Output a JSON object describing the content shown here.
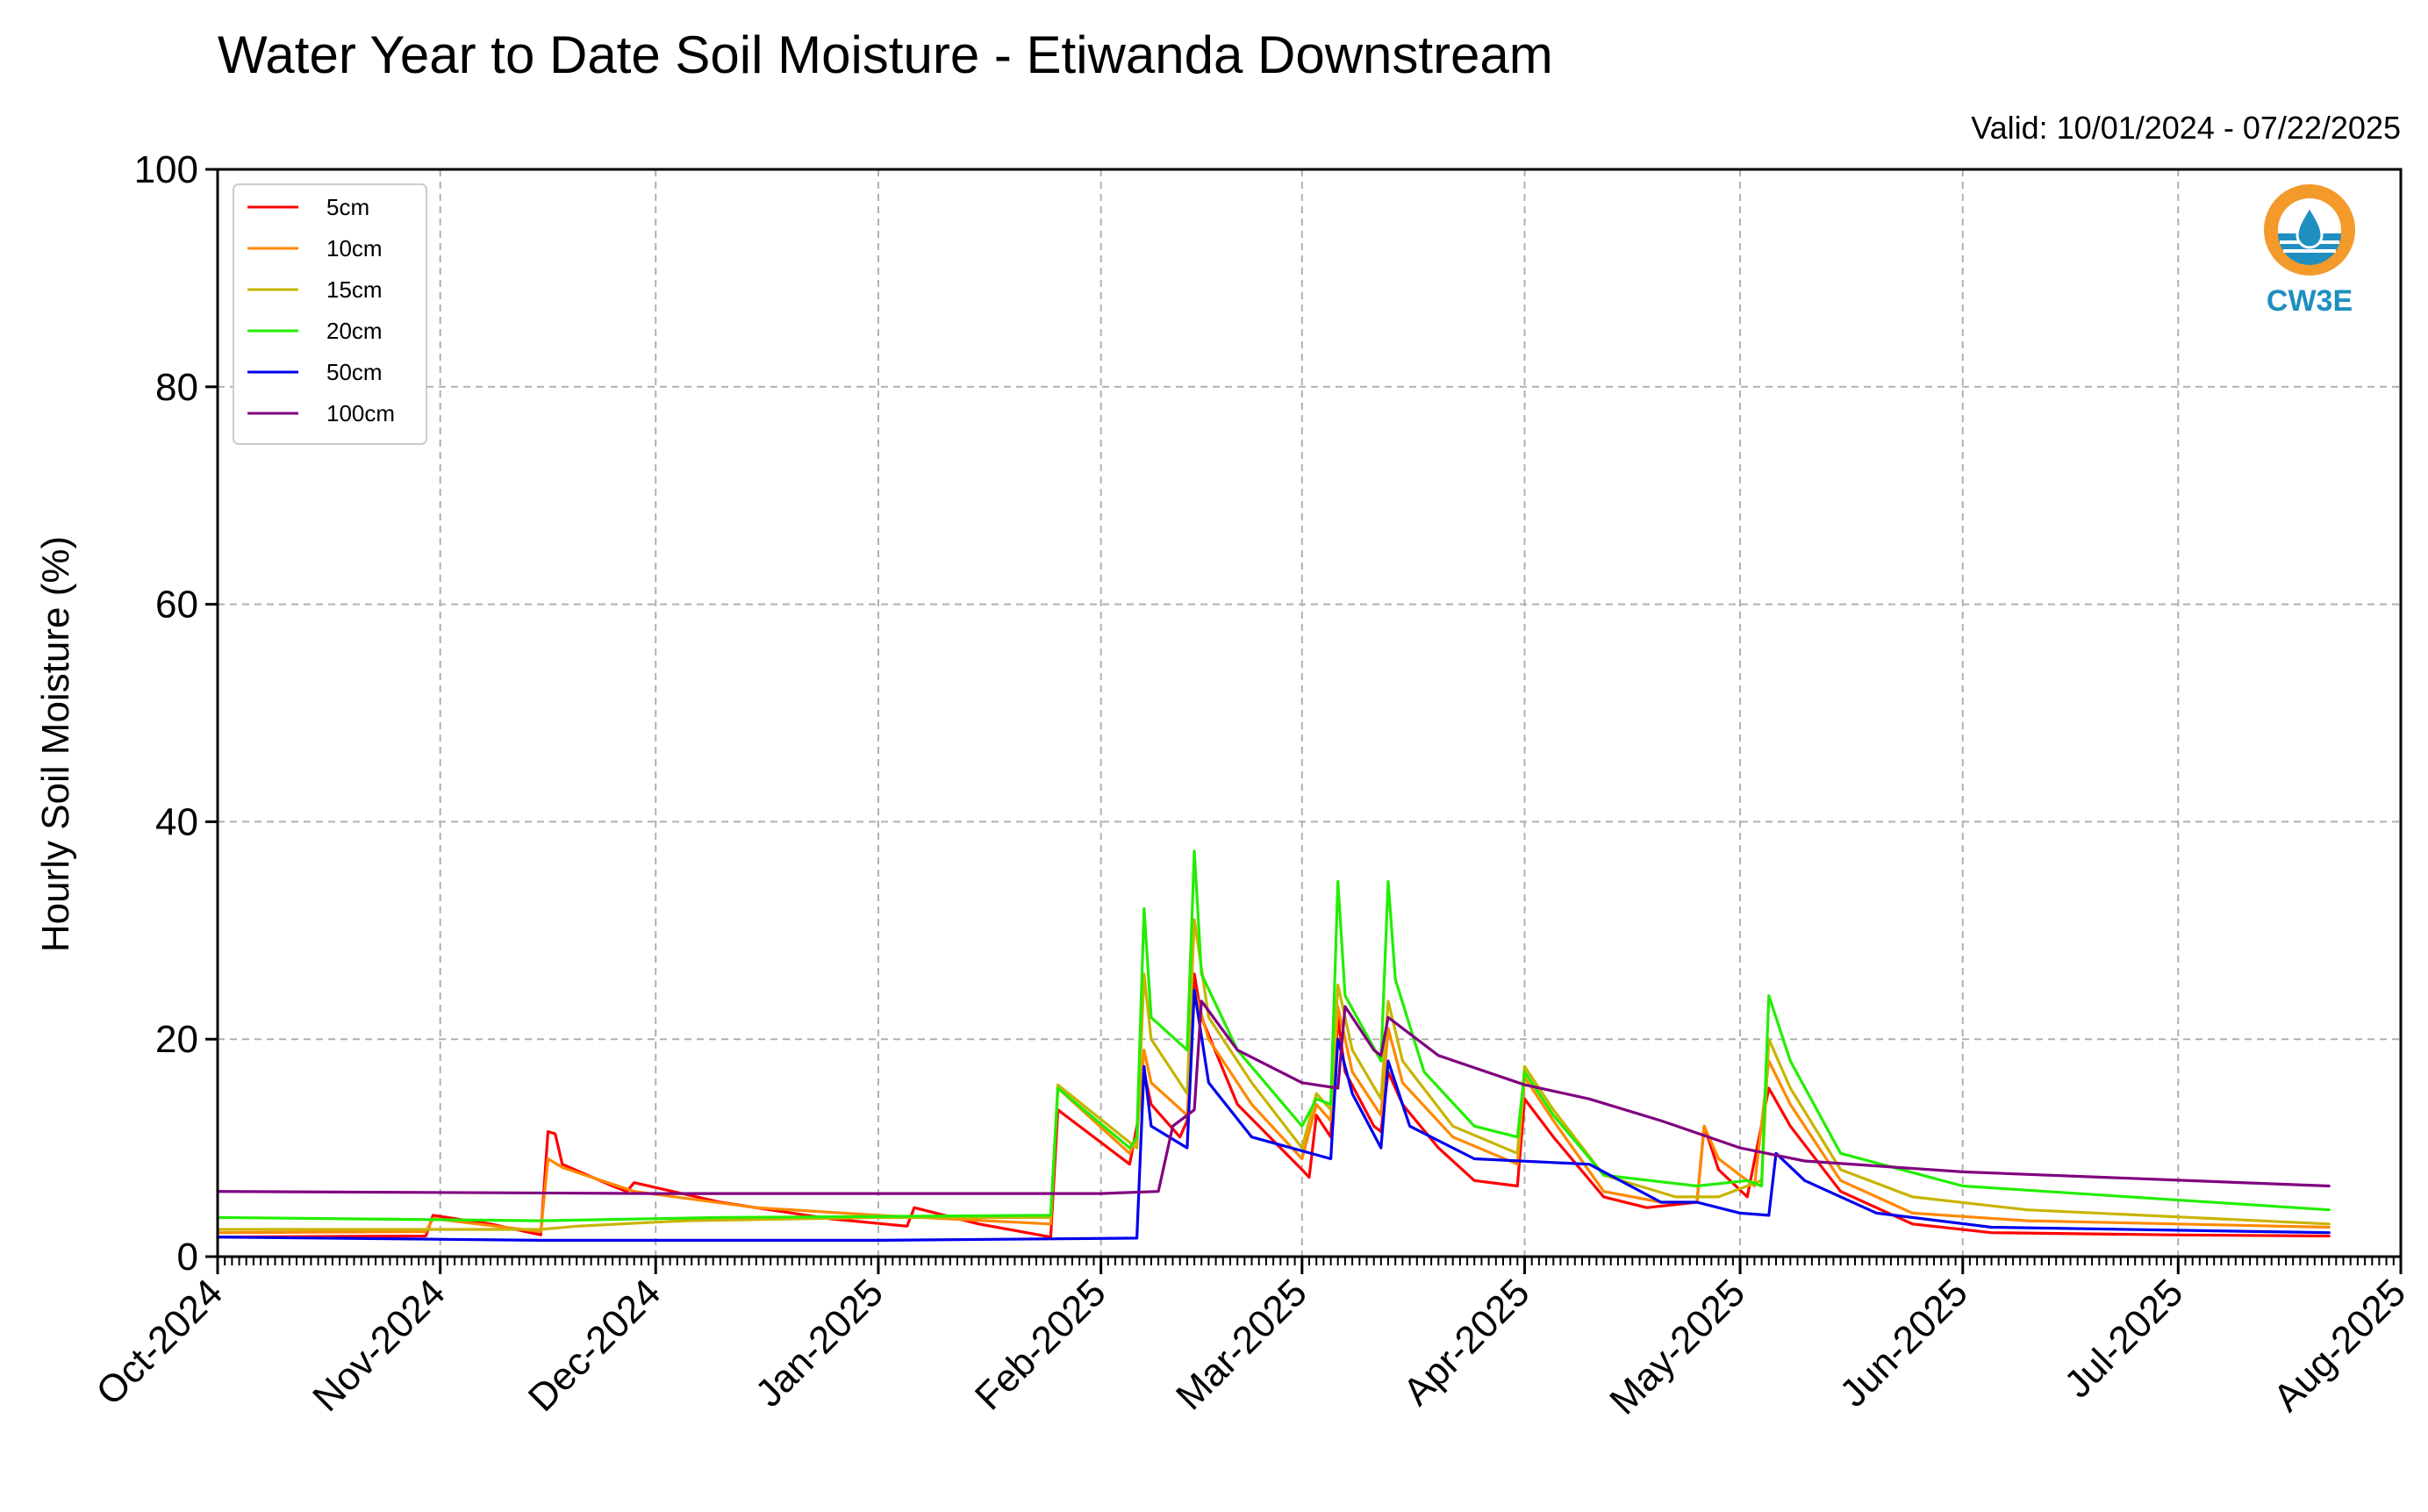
{
  "chart_data": {
    "type": "line",
    "title": "Water Year to Date Soil Moisture - Etiwanda Downstream",
    "subtitle": "Valid: 10/01/2024 - 07/22/2025",
    "xlabel": "",
    "ylabel": "Hourly Soil Moisture (%)",
    "xlim": [
      "2024-10-01",
      "2025-08-01"
    ],
    "ylim": [
      0,
      100
    ],
    "yticks": [
      0,
      20,
      40,
      60,
      80,
      100
    ],
    "xticks": [
      {
        "date": "2024-10-01",
        "label": "Oct-2024"
      },
      {
        "date": "2024-11-01",
        "label": "Nov-2024"
      },
      {
        "date": "2024-12-01",
        "label": "Dec-2024"
      },
      {
        "date": "2025-01-01",
        "label": "Jan-2025"
      },
      {
        "date": "2025-02-01",
        "label": "Feb-2025"
      },
      {
        "date": "2025-03-01",
        "label": "Mar-2025"
      },
      {
        "date": "2025-04-01",
        "label": "Apr-2025"
      },
      {
        "date": "2025-05-01",
        "label": "May-2025"
      },
      {
        "date": "2025-06-01",
        "label": "Jun-2025"
      },
      {
        "date": "2025-07-01",
        "label": "Jul-2025"
      },
      {
        "date": "2025-08-01",
        "label": "Aug-2025"
      }
    ],
    "grid": true,
    "legend_position": "top-left",
    "series": [
      {
        "name": "5cm",
        "color": "#ff0000",
        "points": [
          [
            "2024-10-01",
            1.8
          ],
          [
            "2024-10-30",
            1.9
          ],
          [
            "2024-10-31",
            3.8
          ],
          [
            "2024-11-08",
            3.0
          ],
          [
            "2024-11-15",
            2.0
          ],
          [
            "2024-11-16",
            11.5
          ],
          [
            "2024-11-17",
            11.3
          ],
          [
            "2024-11-18",
            8.5
          ],
          [
            "2024-11-25",
            6.5
          ],
          [
            "2024-11-27",
            6.0
          ],
          [
            "2024-11-28",
            6.8
          ],
          [
            "2024-12-10",
            5.0
          ],
          [
            "2024-12-25",
            3.5
          ],
          [
            "2025-01-05",
            2.8
          ],
          [
            "2025-01-06",
            4.5
          ],
          [
            "2025-01-15",
            3.0
          ],
          [
            "2025-01-25",
            1.8
          ],
          [
            "2025-01-26",
            13.5
          ],
          [
            "2025-01-27",
            13.0
          ],
          [
            "2025-02-05",
            8.5
          ],
          [
            "2025-02-06",
            12.0
          ],
          [
            "2025-02-07",
            17.0
          ],
          [
            "2025-02-08",
            14.0
          ],
          [
            "2025-02-12",
            11.0
          ],
          [
            "2025-02-13",
            12.5
          ],
          [
            "2025-02-14",
            26.0
          ],
          [
            "2025-02-15",
            22.0
          ],
          [
            "2025-02-20",
            14.0
          ],
          [
            "2025-03-01",
            8.0
          ],
          [
            "2025-03-02",
            7.3
          ],
          [
            "2025-03-03",
            13.0
          ],
          [
            "2025-03-05",
            11.0
          ],
          [
            "2025-03-06",
            22.0
          ],
          [
            "2025-03-07",
            17.0
          ],
          [
            "2025-03-11",
            12.0
          ],
          [
            "2025-03-12",
            11.5
          ],
          [
            "2025-03-13",
            17.0
          ],
          [
            "2025-03-15",
            14.0
          ],
          [
            "2025-03-20",
            10.0
          ],
          [
            "2025-03-25",
            7.0
          ],
          [
            "2025-03-31",
            6.5
          ],
          [
            "2025-04-01",
            14.5
          ],
          [
            "2025-04-05",
            11.0
          ],
          [
            "2025-04-12",
            5.5
          ],
          [
            "2025-04-18",
            4.5
          ],
          [
            "2025-04-25",
            5.0
          ],
          [
            "2025-04-26",
            12.0
          ],
          [
            "2025-04-28",
            8.0
          ],
          [
            "2025-05-02",
            5.5
          ],
          [
            "2025-05-05",
            15.5
          ],
          [
            "2025-05-08",
            12.0
          ],
          [
            "2025-05-15",
            6.0
          ],
          [
            "2025-05-25",
            3.0
          ],
          [
            "2025-06-05",
            2.2
          ],
          [
            "2025-06-30",
            2.0
          ],
          [
            "2025-07-22",
            1.9
          ]
        ]
      },
      {
        "name": "10cm",
        "color": "#ff8800",
        "points": [
          [
            "2024-10-01",
            2.2
          ],
          [
            "2024-10-30",
            2.3
          ],
          [
            "2024-10-31",
            3.5
          ],
          [
            "2024-11-15",
            2.3
          ],
          [
            "2024-11-16",
            9.0
          ],
          [
            "2024-11-18",
            8.2
          ],
          [
            "2024-11-28",
            6.0
          ],
          [
            "2024-12-15",
            4.5
          ],
          [
            "2025-01-01",
            3.8
          ],
          [
            "2025-01-25",
            3.0
          ],
          [
            "2025-01-26",
            15.5
          ],
          [
            "2025-02-05",
            9.5
          ],
          [
            "2025-02-06",
            11.0
          ],
          [
            "2025-02-07",
            19.0
          ],
          [
            "2025-02-08",
            16.0
          ],
          [
            "2025-02-13",
            13.0
          ],
          [
            "2025-02-14",
            24.5
          ],
          [
            "2025-02-16",
            20.0
          ],
          [
            "2025-02-22",
            14.0
          ],
          [
            "2025-03-01",
            9.0
          ],
          [
            "2025-03-03",
            14.0
          ],
          [
            "2025-03-05",
            12.5
          ],
          [
            "2025-03-06",
            23.0
          ],
          [
            "2025-03-08",
            17.0
          ],
          [
            "2025-03-12",
            13.0
          ],
          [
            "2025-03-13",
            21.0
          ],
          [
            "2025-03-15",
            16.0
          ],
          [
            "2025-03-22",
            11.0
          ],
          [
            "2025-03-31",
            8.5
          ],
          [
            "2025-04-01",
            16.5
          ],
          [
            "2025-04-05",
            12.5
          ],
          [
            "2025-04-12",
            6.0
          ],
          [
            "2025-04-20",
            5.0
          ],
          [
            "2025-04-25",
            5.0
          ],
          [
            "2025-04-26",
            12.0
          ],
          [
            "2025-04-28",
            9.0
          ],
          [
            "2025-05-03",
            6.5
          ],
          [
            "2025-05-05",
            18.0
          ],
          [
            "2025-05-08",
            14.0
          ],
          [
            "2025-05-15",
            7.0
          ],
          [
            "2025-05-25",
            4.0
          ],
          [
            "2025-06-10",
            3.3
          ],
          [
            "2025-07-22",
            2.7
          ]
        ]
      },
      {
        "name": "15cm",
        "color": "#c8b400",
        "points": [
          [
            "2024-10-01",
            2.5
          ],
          [
            "2024-11-15",
            2.5
          ],
          [
            "2024-11-20",
            2.8
          ],
          [
            "2024-12-05",
            3.3
          ],
          [
            "2025-01-01",
            3.6
          ],
          [
            "2025-01-25",
            3.6
          ],
          [
            "2025-01-26",
            15.8
          ],
          [
            "2025-02-05",
            10.5
          ],
          [
            "2025-02-06",
            10.0
          ],
          [
            "2025-02-07",
            26.0
          ],
          [
            "2025-02-08",
            20.0
          ],
          [
            "2025-02-13",
            15.0
          ],
          [
            "2025-02-14",
            31.0
          ],
          [
            "2025-02-16",
            22.0
          ],
          [
            "2025-02-22",
            16.0
          ],
          [
            "2025-03-01",
            10.0
          ],
          [
            "2025-03-03",
            15.0
          ],
          [
            "2025-03-05",
            13.5
          ],
          [
            "2025-03-06",
            25.0
          ],
          [
            "2025-03-08",
            19.0
          ],
          [
            "2025-03-12",
            14.5
          ],
          [
            "2025-03-13",
            23.5
          ],
          [
            "2025-03-15",
            18.0
          ],
          [
            "2025-03-22",
            12.0
          ],
          [
            "2025-03-31",
            9.5
          ],
          [
            "2025-04-01",
            17.5
          ],
          [
            "2025-04-05",
            13.5
          ],
          [
            "2025-04-12",
            7.5
          ],
          [
            "2025-04-22",
            5.5
          ],
          [
            "2025-04-28",
            5.5
          ],
          [
            "2025-05-04",
            7.0
          ],
          [
            "2025-05-05",
            20.0
          ],
          [
            "2025-05-08",
            15.5
          ],
          [
            "2025-05-15",
            8.0
          ],
          [
            "2025-05-25",
            5.5
          ],
          [
            "2025-06-10",
            4.3
          ],
          [
            "2025-07-22",
            3.0
          ]
        ]
      },
      {
        "name": "20cm",
        "color": "#22ee00",
        "points": [
          [
            "2024-10-01",
            3.6
          ],
          [
            "2024-11-15",
            3.3
          ],
          [
            "2024-12-10",
            3.6
          ],
          [
            "2025-01-25",
            3.8
          ],
          [
            "2025-01-26",
            15.5
          ],
          [
            "2025-02-05",
            10.0
          ],
          [
            "2025-02-06",
            11.0
          ],
          [
            "2025-02-07",
            32.0
          ],
          [
            "2025-02-08",
            22.0
          ],
          [
            "2025-02-13",
            19.0
          ],
          [
            "2025-02-14",
            37.3
          ],
          [
            "2025-02-15",
            26.0
          ],
          [
            "2025-02-20",
            19.0
          ],
          [
            "2025-03-01",
            12.0
          ],
          [
            "2025-03-03",
            14.5
          ],
          [
            "2025-03-05",
            14.0
          ],
          [
            "2025-03-06",
            34.5
          ],
          [
            "2025-03-07",
            24.0
          ],
          [
            "2025-03-12",
            18.0
          ],
          [
            "2025-03-13",
            34.5
          ],
          [
            "2025-03-14",
            25.5
          ],
          [
            "2025-03-18",
            17.0
          ],
          [
            "2025-03-25",
            12.0
          ],
          [
            "2025-03-31",
            11.0
          ],
          [
            "2025-04-01",
            17.0
          ],
          [
            "2025-04-05",
            13.0
          ],
          [
            "2025-04-12",
            7.5
          ],
          [
            "2025-04-25",
            6.5
          ],
          [
            "2025-05-02",
            7.0
          ],
          [
            "2025-05-04",
            6.5
          ],
          [
            "2025-05-05",
            24.0
          ],
          [
            "2025-05-08",
            18.0
          ],
          [
            "2025-05-15",
            9.5
          ],
          [
            "2025-06-01",
            6.5
          ],
          [
            "2025-07-22",
            4.3
          ]
        ]
      },
      {
        "name": "50cm",
        "color": "#0000ee",
        "points": [
          [
            "2024-10-01",
            1.8
          ],
          [
            "2024-11-15",
            1.5
          ],
          [
            "2025-01-01",
            1.5
          ],
          [
            "2025-02-06",
            1.7
          ],
          [
            "2025-02-07",
            17.5
          ],
          [
            "2025-02-08",
            12.0
          ],
          [
            "2025-02-13",
            10.0
          ],
          [
            "2025-02-14",
            24.5
          ],
          [
            "2025-02-16",
            16.0
          ],
          [
            "2025-02-22",
            11.0
          ],
          [
            "2025-03-05",
            9.0
          ],
          [
            "2025-03-06",
            20.0
          ],
          [
            "2025-03-08",
            15.0
          ],
          [
            "2025-03-12",
            10.0
          ],
          [
            "2025-03-13",
            18.0
          ],
          [
            "2025-03-16",
            12.0
          ],
          [
            "2025-03-25",
            9.0
          ],
          [
            "2025-04-10",
            8.5
          ],
          [
            "2025-04-20",
            5.0
          ],
          [
            "2025-04-25",
            5.0
          ],
          [
            "2025-05-01",
            4.0
          ],
          [
            "2025-05-05",
            3.8
          ],
          [
            "2025-05-06",
            9.5
          ],
          [
            "2025-05-10",
            7.0
          ],
          [
            "2025-05-20",
            4.0
          ],
          [
            "2025-06-05",
            2.7
          ],
          [
            "2025-07-22",
            2.2
          ]
        ]
      },
      {
        "name": "100cm",
        "color": "#800080",
        "points": [
          [
            "2024-10-01",
            6.0
          ],
          [
            "2024-12-01",
            5.8
          ],
          [
            "2025-02-01",
            5.8
          ],
          [
            "2025-02-09",
            6.0
          ],
          [
            "2025-02-11",
            12.0
          ],
          [
            "2025-02-14",
            13.5
          ],
          [
            "2025-02-15",
            23.5
          ],
          [
            "2025-02-20",
            19.0
          ],
          [
            "2025-03-01",
            16.0
          ],
          [
            "2025-03-06",
            15.5
          ],
          [
            "2025-03-07",
            23.0
          ],
          [
            "2025-03-11",
            19.0
          ],
          [
            "2025-03-12",
            18.5
          ],
          [
            "2025-03-13",
            22.0
          ],
          [
            "2025-03-20",
            18.5
          ],
          [
            "2025-04-01",
            15.8
          ],
          [
            "2025-04-10",
            14.5
          ],
          [
            "2025-04-20",
            12.5
          ],
          [
            "2025-05-01",
            10.0
          ],
          [
            "2025-05-10",
            8.8
          ],
          [
            "2025-06-01",
            7.8
          ],
          [
            "2025-07-22",
            6.5
          ]
        ]
      }
    ]
  },
  "logo": {
    "text": "CW3E",
    "orange": "#f39a2b",
    "blue": "#1f8fbf"
  }
}
